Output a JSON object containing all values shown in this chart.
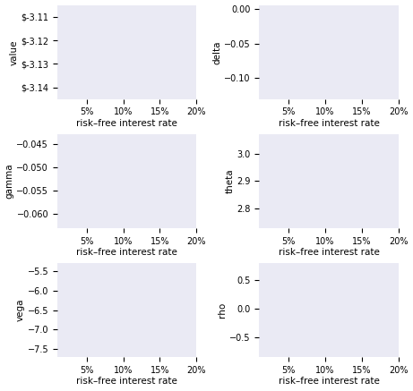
{
  "r_min": 0.01,
  "r_max": 0.2,
  "r_ticks": [
    0.05,
    0.1,
    0.15,
    0.2
  ],
  "r_tick_labels": [
    "5%",
    "10%",
    "15%",
    "20%"
  ],
  "xlabel": "risk–free interest rate",
  "plots": [
    {
      "ylabel": "value",
      "ylim": [
        -3.145,
        -3.105
      ]
    },
    {
      "ylabel": "delta",
      "ylim": [
        -0.13,
        0.005
      ]
    },
    {
      "ylabel": "gamma",
      "ylim": [
        -0.063,
        -0.043
      ]
    },
    {
      "ylabel": "theta",
      "ylim": [
        2.73,
        3.07
      ]
    },
    {
      "ylabel": "vega",
      "ylim": [
        -7.7,
        -5.3
      ]
    },
    {
      "ylabel": "rho",
      "ylim": [
        -0.85,
        0.8
      ]
    }
  ],
  "line_color": "#5555aa",
  "bg_color": "#eaeaf4",
  "fig_bg": "#ffffff",
  "figsize": [
    4.61,
    4.37
  ],
  "dpi": 100
}
